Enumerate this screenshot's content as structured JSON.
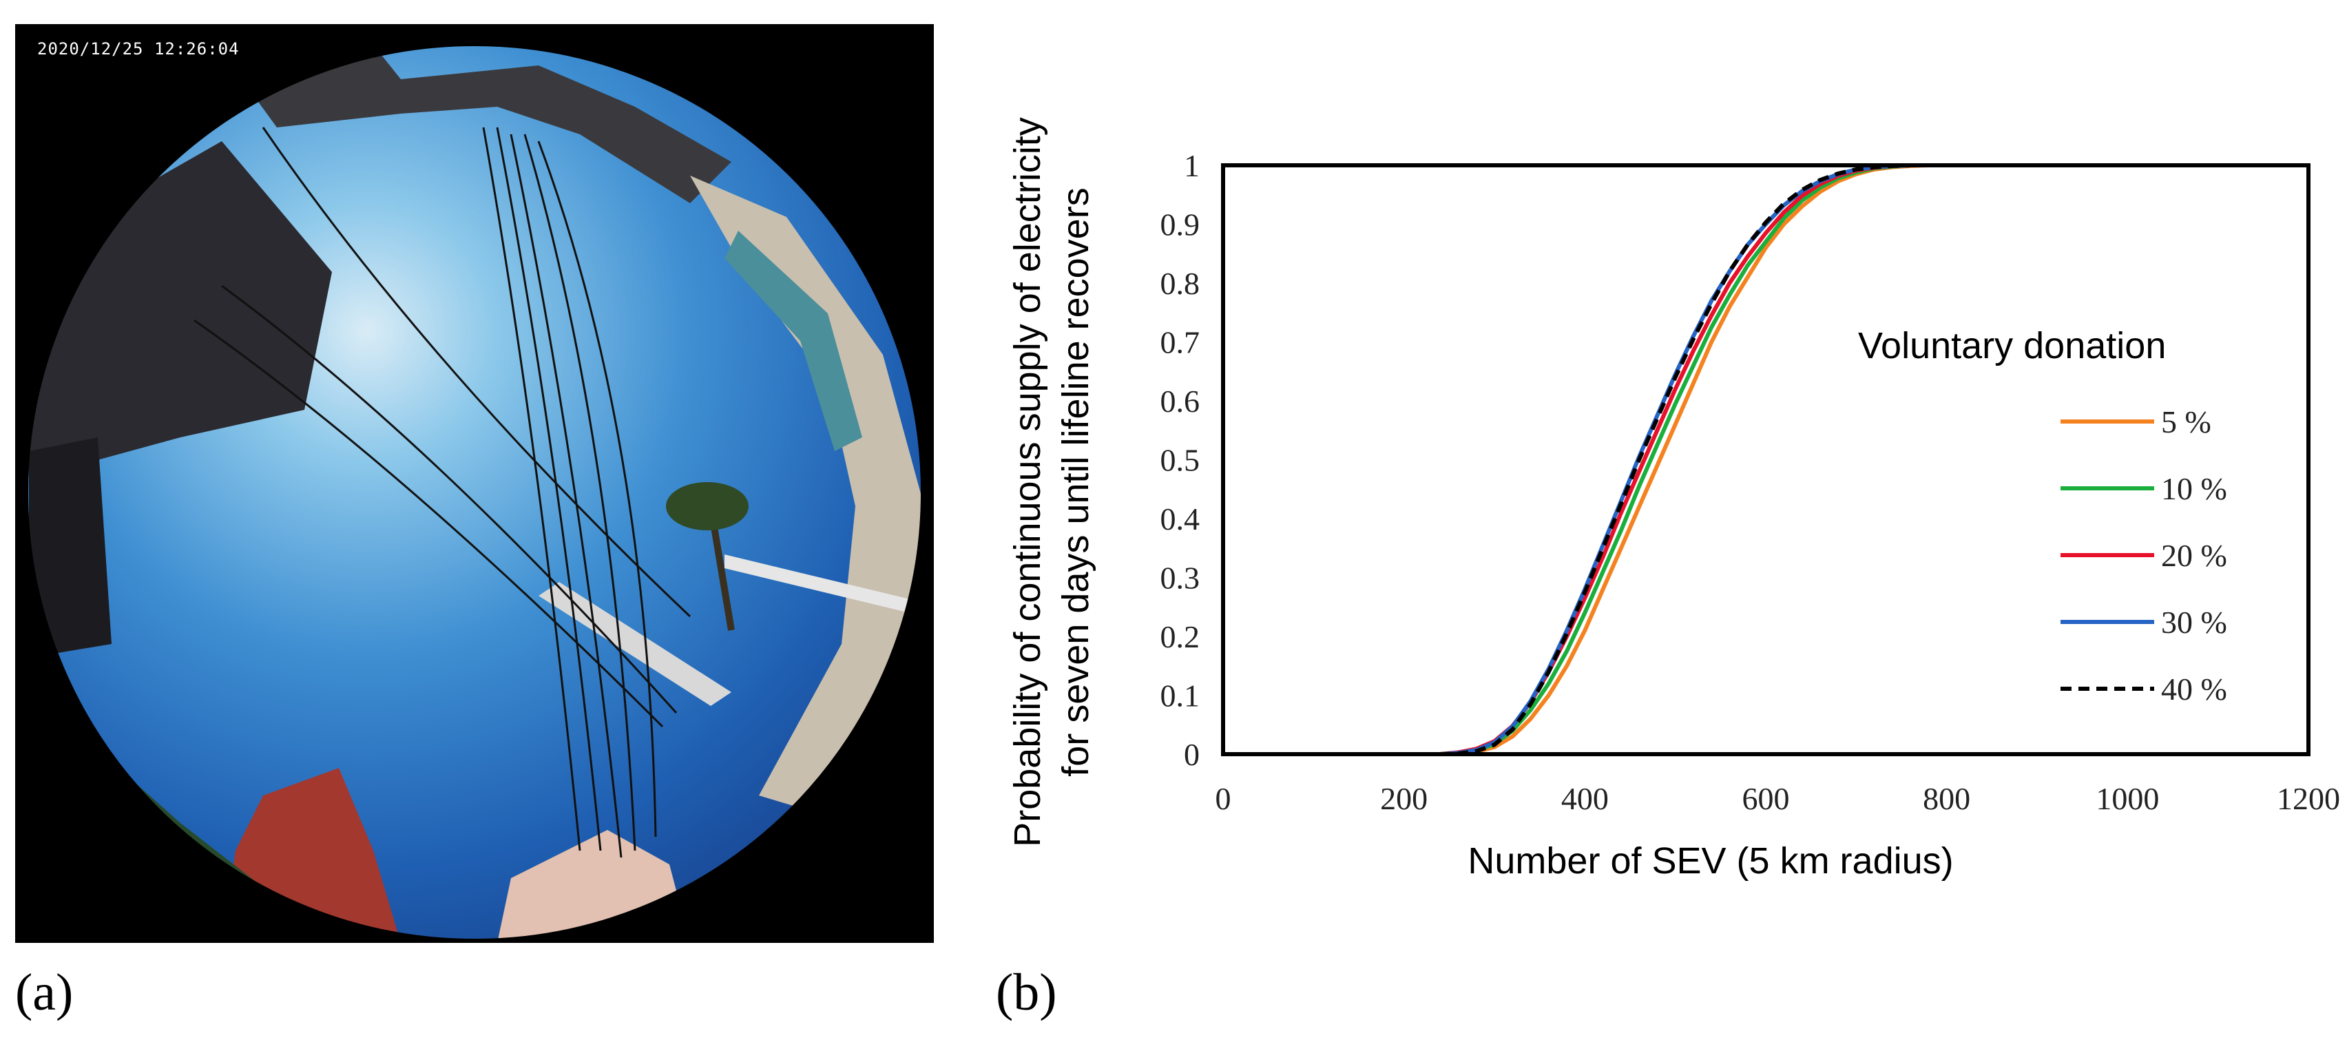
{
  "panel_a": {
    "label": "(a)",
    "timestamp": "2020/12/25 12:26:04"
  },
  "panel_b": {
    "label": "(b)"
  },
  "chart_data": {
    "type": "line",
    "title": "",
    "xlabel": "Number of SEV (5 km radius)",
    "ylabel_lines": [
      "Probability of continuous supply of electricity",
      "for seven days until lifeline recovers"
    ],
    "xlim": [
      0,
      1200
    ],
    "ylim": [
      0,
      1
    ],
    "xticks": [
      0,
      200,
      400,
      600,
      800,
      1000,
      1200
    ],
    "yticks": [
      0,
      0.1,
      0.2,
      0.3,
      0.4,
      0.5,
      0.6,
      0.7,
      0.8,
      0.9,
      1
    ],
    "grid": false,
    "legend_title": "Voluntary donation",
    "legend_position": "right",
    "x": [
      160,
      240,
      260,
      280,
      300,
      320,
      340,
      360,
      380,
      400,
      420,
      440,
      460,
      480,
      500,
      520,
      540,
      560,
      580,
      600,
      620,
      640,
      660,
      680,
      700,
      720,
      740,
      760,
      780,
      800,
      1200
    ],
    "series": [
      {
        "name": "5 %",
        "color": "#f58220",
        "dash": "solid",
        "values": [
          0,
          0,
          0.001,
          0.004,
          0.012,
          0.03,
          0.06,
          0.1,
          0.15,
          0.21,
          0.28,
          0.35,
          0.42,
          0.49,
          0.56,
          0.63,
          0.7,
          0.76,
          0.81,
          0.86,
          0.9,
          0.93,
          0.955,
          0.973,
          0.985,
          0.993,
          0.997,
          0.999,
          1,
          1,
          1
        ]
      },
      {
        "name": "10 %",
        "color": "#1aaf3c",
        "dash": "solid",
        "values": [
          0,
          0,
          0.002,
          0.006,
          0.017,
          0.04,
          0.075,
          0.12,
          0.175,
          0.24,
          0.31,
          0.38,
          0.455,
          0.525,
          0.595,
          0.66,
          0.725,
          0.78,
          0.83,
          0.87,
          0.91,
          0.94,
          0.962,
          0.978,
          0.988,
          0.995,
          0.998,
          1,
          1,
          1,
          1
        ]
      },
      {
        "name": "20 %",
        "color": "#e8102a",
        "dash": "solid",
        "values": [
          0,
          0,
          0.003,
          0.009,
          0.022,
          0.048,
          0.088,
          0.14,
          0.2,
          0.265,
          0.335,
          0.41,
          0.48,
          0.55,
          0.62,
          0.685,
          0.745,
          0.8,
          0.845,
          0.885,
          0.92,
          0.948,
          0.968,
          0.982,
          0.991,
          0.996,
          0.999,
          1,
          1,
          1,
          1
        ]
      },
      {
        "name": "30 %",
        "color": "#2563c4",
        "dash": "solid",
        "values": [
          0,
          0,
          0.002,
          0.007,
          0.02,
          0.047,
          0.09,
          0.145,
          0.21,
          0.28,
          0.355,
          0.43,
          0.505,
          0.575,
          0.645,
          0.71,
          0.77,
          0.82,
          0.865,
          0.9,
          0.932,
          0.956,
          0.973,
          0.985,
          0.993,
          0.997,
          0.999,
          1,
          1,
          1,
          1
        ]
      },
      {
        "name": "40 %",
        "color": "#000000",
        "dash": "dashed",
        "values": [
          0,
          0,
          0.001,
          0.005,
          0.016,
          0.042,
          0.085,
          0.14,
          0.205,
          0.275,
          0.35,
          0.425,
          0.5,
          0.57,
          0.64,
          0.705,
          0.765,
          0.82,
          0.865,
          0.903,
          0.935,
          0.958,
          0.975,
          0.986,
          0.993,
          0.997,
          0.999,
          1,
          1,
          1,
          1
        ]
      }
    ]
  }
}
